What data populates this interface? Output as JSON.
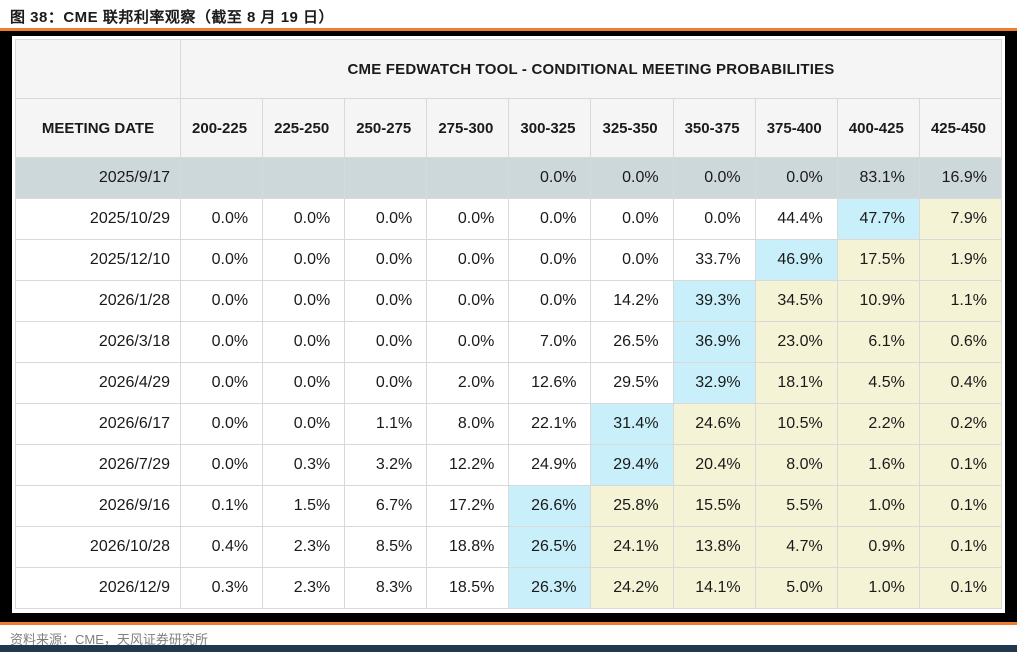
{
  "header": {
    "title": "图 38：CME 联邦利率观察（截至 8 月 19 日）"
  },
  "table": {
    "spanning_header": "CME FEDWATCH TOOL - CONDITIONAL MEETING PROBABILITIES",
    "date_column_header": "MEETING DATE",
    "rate_columns": [
      "200-225",
      "225-250",
      "250-275",
      "275-300",
      "300-325",
      "325-350",
      "350-375",
      "375-400",
      "400-425",
      "425-450"
    ],
    "rows": [
      {
        "date": "2025/9/17",
        "style": "active",
        "values": [
          "",
          "",
          "",
          "",
          "0.0%",
          "0.0%",
          "0.0%",
          "0.0%",
          "83.1%",
          "16.9%"
        ],
        "cell_styles": [
          "",
          "",
          "",
          "",
          "",
          "",
          "",
          "",
          "",
          ""
        ]
      },
      {
        "date": "2025/10/29",
        "style": "normal",
        "values": [
          "0.0%",
          "0.0%",
          "0.0%",
          "0.0%",
          "0.0%",
          "0.0%",
          "0.0%",
          "44.4%",
          "47.7%",
          "7.9%"
        ],
        "cell_styles": [
          "",
          "",
          "",
          "",
          "",
          "",
          "",
          "",
          "cyan",
          "yellow"
        ]
      },
      {
        "date": "2025/12/10",
        "style": "normal",
        "values": [
          "0.0%",
          "0.0%",
          "0.0%",
          "0.0%",
          "0.0%",
          "0.0%",
          "33.7%",
          "46.9%",
          "17.5%",
          "1.9%"
        ],
        "cell_styles": [
          "",
          "",
          "",
          "",
          "",
          "",
          "",
          "cyan",
          "yellow",
          "yellow"
        ]
      },
      {
        "date": "2026/1/28",
        "style": "normal",
        "values": [
          "0.0%",
          "0.0%",
          "0.0%",
          "0.0%",
          "0.0%",
          "14.2%",
          "39.3%",
          "34.5%",
          "10.9%",
          "1.1%"
        ],
        "cell_styles": [
          "",
          "",
          "",
          "",
          "",
          "",
          "cyan",
          "yellow",
          "yellow",
          "yellow"
        ]
      },
      {
        "date": "2026/3/18",
        "style": "normal",
        "values": [
          "0.0%",
          "0.0%",
          "0.0%",
          "0.0%",
          "7.0%",
          "26.5%",
          "36.9%",
          "23.0%",
          "6.1%",
          "0.6%"
        ],
        "cell_styles": [
          "",
          "",
          "",
          "",
          "",
          "",
          "cyan",
          "yellow",
          "yellow",
          "yellow"
        ]
      },
      {
        "date": "2026/4/29",
        "style": "normal",
        "values": [
          "0.0%",
          "0.0%",
          "0.0%",
          "2.0%",
          "12.6%",
          "29.5%",
          "32.9%",
          "18.1%",
          "4.5%",
          "0.4%"
        ],
        "cell_styles": [
          "",
          "",
          "",
          "",
          "",
          "",
          "cyan",
          "yellow",
          "yellow",
          "yellow"
        ]
      },
      {
        "date": "2026/6/17",
        "style": "normal",
        "values": [
          "0.0%",
          "0.0%",
          "1.1%",
          "8.0%",
          "22.1%",
          "31.4%",
          "24.6%",
          "10.5%",
          "2.2%",
          "0.2%"
        ],
        "cell_styles": [
          "",
          "",
          "",
          "",
          "",
          "cyan",
          "yellow",
          "yellow",
          "yellow",
          "yellow"
        ]
      },
      {
        "date": "2026/7/29",
        "style": "normal",
        "values": [
          "0.0%",
          "0.3%",
          "3.2%",
          "12.2%",
          "24.9%",
          "29.4%",
          "20.4%",
          "8.0%",
          "1.6%",
          "0.1%"
        ],
        "cell_styles": [
          "",
          "",
          "",
          "",
          "",
          "cyan",
          "yellow",
          "yellow",
          "yellow",
          "yellow"
        ]
      },
      {
        "date": "2026/9/16",
        "style": "normal",
        "values": [
          "0.1%",
          "1.5%",
          "6.7%",
          "17.2%",
          "26.6%",
          "25.8%",
          "15.5%",
          "5.5%",
          "1.0%",
          "0.1%"
        ],
        "cell_styles": [
          "",
          "",
          "",
          "",
          "cyan",
          "yellow",
          "yellow",
          "yellow",
          "yellow",
          "yellow"
        ]
      },
      {
        "date": "2026/10/28",
        "style": "normal",
        "values": [
          "0.4%",
          "2.3%",
          "8.5%",
          "18.8%",
          "26.5%",
          "24.1%",
          "13.8%",
          "4.7%",
          "0.9%",
          "0.1%"
        ],
        "cell_styles": [
          "",
          "",
          "",
          "",
          "cyan",
          "yellow",
          "yellow",
          "yellow",
          "yellow",
          "yellow"
        ]
      },
      {
        "date": "2026/12/9",
        "style": "normal",
        "values": [
          "0.3%",
          "2.3%",
          "8.3%",
          "18.5%",
          "26.3%",
          "24.2%",
          "14.1%",
          "5.0%",
          "1.0%",
          "0.1%"
        ],
        "cell_styles": [
          "",
          "",
          "",
          "",
          "cyan",
          "yellow",
          "yellow",
          "yellow",
          "yellow",
          "yellow"
        ]
      }
    ]
  },
  "footer": {
    "source": "资料来源：CME，天风证券研究所"
  },
  "colors": {
    "accent_orange": "#ED7D31",
    "active_row_bg": "#CDD8DB",
    "cyan_cell_bg": "#C8EFFA",
    "yellow_cell_bg": "#F5F3D5",
    "header_bg": "#F5F5F5",
    "grid_line": "#D9D9D9",
    "source_text": "#808080",
    "bottom_bar": "#22384F"
  }
}
